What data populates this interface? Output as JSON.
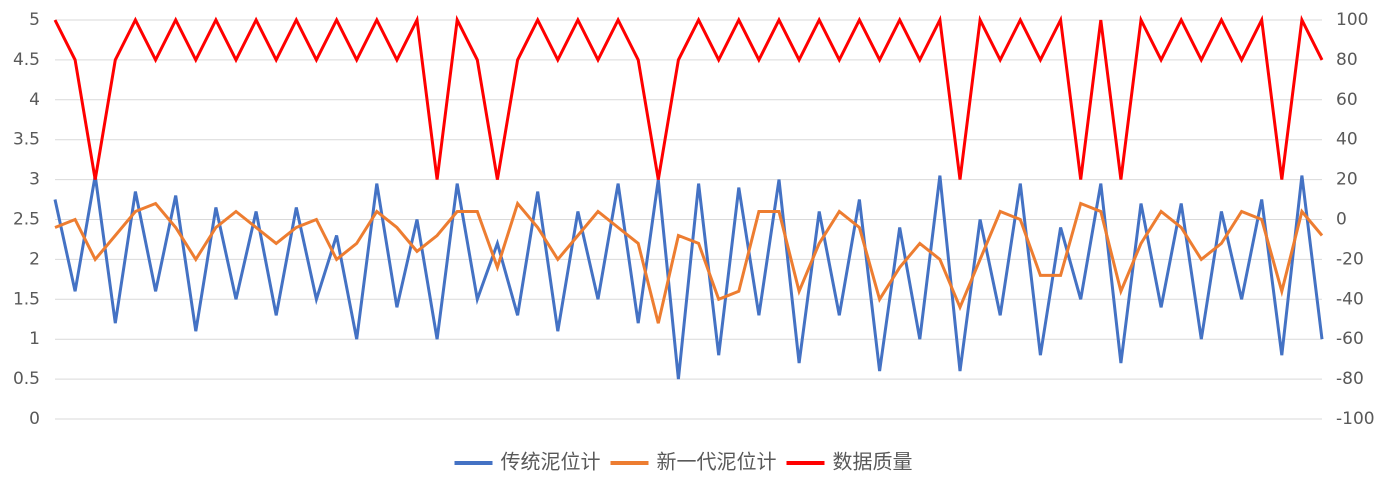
{
  "chart_data": {
    "type": "line",
    "categories": [
      null,
      null,
      null,
      null,
      null,
      null,
      null,
      null,
      null,
      null,
      null,
      null,
      null,
      null,
      null,
      null,
      null,
      null,
      null,
      null,
      null,
      null,
      null,
      null,
      null,
      null,
      null,
      null,
      null,
      null,
      null,
      null,
      null,
      null,
      null,
      null,
      null,
      null,
      null,
      null,
      null,
      null,
      null,
      null,
      null,
      null,
      null,
      null,
      null,
      null,
      null,
      null,
      null,
      null,
      null,
      null,
      null,
      null,
      null,
      null,
      null,
      null,
      null,
      null
    ],
    "series": [
      {
        "name": "传统泥位计",
        "color": "#4472c4",
        "values": [
          2.75,
          1.6,
          3.05,
          1.2,
          2.85,
          1.6,
          2.8,
          1.1,
          2.65,
          1.5,
          2.6,
          1.3,
          2.65,
          1.5,
          2.3,
          1.0,
          2.95,
          1.4,
          2.5,
          1.0,
          2.95,
          1.5,
          2.2,
          1.3,
          2.85,
          1.1,
          2.6,
          1.5,
          2.95,
          1.2,
          3.0,
          0.5,
          2.95,
          0.8,
          2.9,
          1.3,
          3.0,
          0.7,
          2.6,
          1.3,
          2.75,
          0.6,
          2.4,
          1.0,
          3.05,
          0.6,
          2.5,
          1.3,
          2.95,
          0.8,
          2.4,
          1.5,
          2.95,
          0.7,
          2.7,
          1.4,
          2.7,
          1.0,
          2.6,
          1.5,
          2.75,
          0.8,
          3.05,
          1.0
        ]
      },
      {
        "name": "新一代泥位计",
        "color": "#ed7d31",
        "values": [
          2.4,
          2.5,
          2.0,
          2.3,
          2.6,
          2.7,
          2.4,
          2.0,
          2.4,
          2.6,
          2.4,
          2.2,
          2.4,
          2.5,
          2.0,
          2.2,
          2.6,
          2.4,
          2.1,
          2.3,
          2.6,
          2.6,
          1.9,
          2.7,
          2.4,
          2.0,
          2.3,
          2.6,
          2.4,
          2.2,
          1.2,
          2.3,
          2.2,
          1.5,
          1.6,
          2.6,
          2.6,
          1.6,
          2.2,
          2.6,
          2.4,
          1.5,
          1.9,
          2.2,
          2.0,
          1.4,
          2.0,
          2.6,
          2.5,
          1.8,
          1.8,
          2.7,
          2.6,
          1.6,
          2.2,
          2.6,
          2.4,
          2.0,
          2.2,
          2.6,
          2.5,
          1.6,
          2.6,
          2.3
        ]
      },
      {
        "name": "数据质量",
        "color": "#ff0000",
        "axis": "y2",
        "values": [
          100,
          80,
          20,
          80,
          100,
          80,
          100,
          80,
          100,
          80,
          100,
          80,
          100,
          80,
          100,
          80,
          100,
          80,
          100,
          20,
          100,
          80,
          20,
          80,
          100,
          80,
          100,
          80,
          100,
          80,
          20,
          80,
          100,
          80,
          100,
          80,
          100,
          80,
          100,
          80,
          100,
          80,
          100,
          80,
          100,
          20,
          100,
          80,
          100,
          80,
          100,
          20,
          100,
          20,
          100,
          80,
          100,
          80,
          100,
          80,
          100,
          20,
          100,
          80
        ]
      }
    ],
    "ylim": [
      0,
      5
    ],
    "yticks": [
      0,
      0.5,
      1,
      1.5,
      2,
      2.5,
      3,
      3.5,
      4,
      4.5,
      5
    ],
    "y2lim": [
      -100,
      100
    ],
    "y2ticks": [
      -100,
      -80,
      -60,
      -40,
      -20,
      0,
      20,
      40,
      60,
      80,
      100
    ],
    "grid": true,
    "legend": "bottom"
  }
}
